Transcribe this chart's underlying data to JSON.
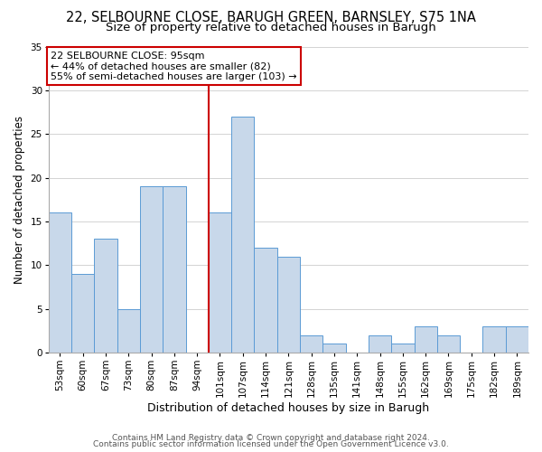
{
  "title": "22, SELBOURNE CLOSE, BARUGH GREEN, BARNSLEY, S75 1NA",
  "subtitle": "Size of property relative to detached houses in Barugh",
  "xlabel": "Distribution of detached houses by size in Barugh",
  "ylabel": "Number of detached properties",
  "categories": [
    "53sqm",
    "60sqm",
    "67sqm",
    "73sqm",
    "80sqm",
    "87sqm",
    "94sqm",
    "101sqm",
    "107sqm",
    "114sqm",
    "121sqm",
    "128sqm",
    "135sqm",
    "141sqm",
    "148sqm",
    "155sqm",
    "162sqm",
    "169sqm",
    "175sqm",
    "182sqm",
    "189sqm"
  ],
  "values": [
    16,
    9,
    13,
    5,
    19,
    19,
    0,
    16,
    27,
    12,
    11,
    2,
    1,
    0,
    2,
    1,
    3,
    2,
    0,
    3,
    3
  ],
  "bar_color": "#c8d8ea",
  "bar_edge_color": "#5b9bd5",
  "ylim": [
    0,
    35
  ],
  "yticks": [
    0,
    5,
    10,
    15,
    20,
    25,
    30,
    35
  ],
  "vline_x_index": 6,
  "vline_color": "#cc0000",
  "annotation_title": "22 SELBOURNE CLOSE: 95sqm",
  "annotation_line1": "← 44% of detached houses are smaller (82)",
  "annotation_line2": "55% of semi-detached houses are larger (103) →",
  "annotation_box_color": "#ffffff",
  "annotation_box_edge": "#cc0000",
  "footer1": "Contains HM Land Registry data © Crown copyright and database right 2024.",
  "footer2": "Contains public sector information licensed under the Open Government Licence v3.0.",
  "title_fontsize": 10.5,
  "subtitle_fontsize": 9.5,
  "xlabel_fontsize": 9,
  "ylabel_fontsize": 8.5,
  "tick_fontsize": 7.5,
  "annotation_fontsize": 8,
  "footer_fontsize": 6.5
}
